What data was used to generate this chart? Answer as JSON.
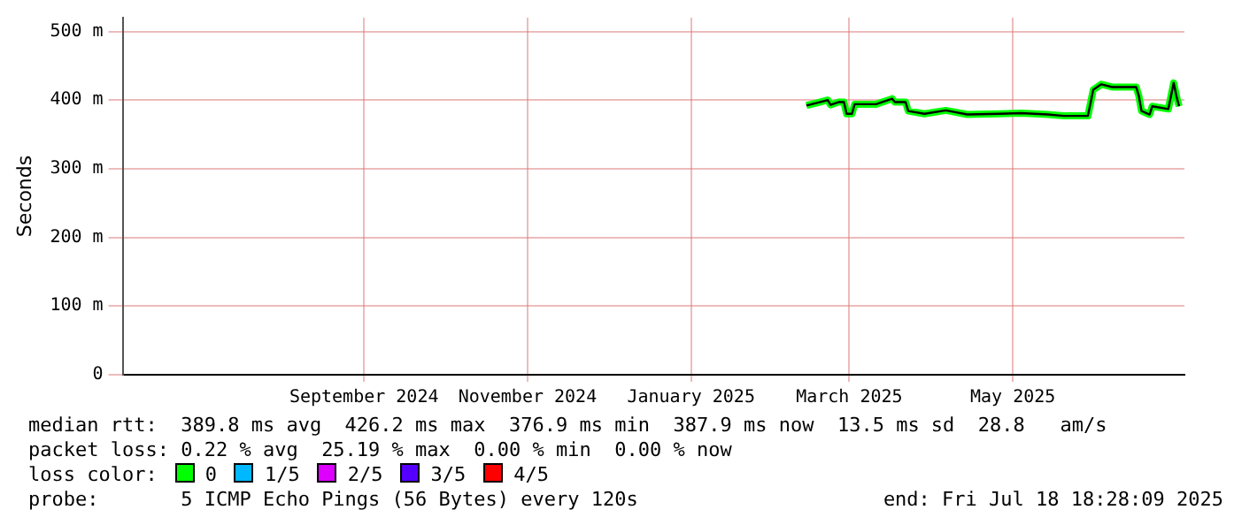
{
  "chart_data": {
    "type": "line",
    "ylabel": "Seconds",
    "x": [
      "2025-02-27",
      "2025-03-03",
      "2025-03-07",
      "2025-03-08",
      "2025-03-11",
      "2025-03-13",
      "2025-03-14",
      "2025-03-16",
      "2025-03-17",
      "2025-03-25",
      "2025-03-31",
      "2025-04-01",
      "2025-04-05",
      "2025-04-06",
      "2025-04-12",
      "2025-04-20",
      "2025-04-28",
      "2025-05-10",
      "2025-05-18",
      "2025-05-28",
      "2025-06-03",
      "2025-06-12",
      "2025-06-14",
      "2025-06-17",
      "2025-06-21",
      "2025-06-30",
      "2025-07-01",
      "2025-07-02",
      "2025-07-05",
      "2025-07-06",
      "2025-07-12",
      "2025-07-14",
      "2025-07-15",
      "2025-07-16"
    ],
    "series": [
      {
        "name": "0",
        "color": "#00ff00",
        "values": [
          392,
          396,
          400,
          393,
          397,
          397,
          380,
          380,
          394,
          394,
          402,
          397,
          397,
          384,
          380,
          385,
          379,
          380,
          381,
          379,
          377,
          377,
          415,
          423,
          419,
          419,
          406,
          384,
          379,
          391,
          387,
          425,
          406,
          391
        ]
      },
      {
        "color": "#000000",
        "values": [
          392,
          396,
          400,
          393,
          397,
          397,
          380,
          380,
          394,
          394,
          402,
          397,
          397,
          384,
          380,
          385,
          379,
          380,
          381,
          379,
          377,
          377,
          415,
          423,
          419,
          419,
          406,
          384,
          379,
          391,
          387,
          425,
          406,
          391
        ]
      },
      {
        "name": "1/5",
        "color": "#00b8ff",
        "values": [
          null,
          null,
          null,
          null,
          null,
          null,
          null,
          null,
          null,
          null,
          null,
          null,
          null,
          null,
          null,
          null,
          null,
          null,
          null,
          null,
          null,
          null,
          null,
          null,
          null,
          null,
          null,
          null,
          null,
          null,
          null,
          null,
          null,
          null
        ]
      },
      {
        "name": "2/5",
        "color": "#dd00ff",
        "values": [
          null,
          null,
          null,
          null,
          null,
          null,
          null,
          null,
          null,
          null,
          null,
          null,
          null,
          null,
          null,
          null,
          null,
          null,
          null,
          null,
          null,
          null,
          null,
          null,
          null,
          null,
          null,
          null,
          null,
          null,
          null,
          null,
          null,
          null
        ]
      },
      {
        "name": "3/5",
        "color": "#5500ff",
        "values": [
          null,
          null,
          null,
          null,
          null,
          null,
          null,
          null,
          null,
          null,
          null,
          null,
          null,
          null,
          null,
          null,
          null,
          null,
          null,
          null,
          null,
          null,
          null,
          null,
          null,
          null,
          null,
          null,
          null,
          null,
          null,
          null,
          null,
          null
        ]
      },
      {
        "name": "4/5",
        "color": "#ff0000",
        "values": [
          null,
          null,
          null,
          null,
          null,
          null,
          null,
          null,
          null,
          null,
          null,
          null,
          null,
          null,
          null,
          null,
          null,
          null,
          null,
          null,
          null,
          null,
          null,
          null,
          null,
          null,
          null,
          null,
          null,
          null,
          null,
          null,
          null,
          null
        ]
      }
    ],
    "xlim": [
      "2024-06-17",
      "2025-07-18"
    ],
    "xticks": [
      {
        "value": "2024-09-15",
        "label": "September 2024"
      },
      {
        "value": "2024-11-15",
        "label": "November 2024"
      },
      {
        "value": "2025-01-15",
        "label": "January 2025"
      },
      {
        "value": "2025-03-15",
        "label": "March 2025"
      },
      {
        "value": "2025-05-15",
        "label": "May 2025"
      }
    ],
    "ylim": [
      0,
      520
    ],
    "yticks": [
      0,
      {
        "value": 100,
        "label": "100 m"
      },
      {
        "value": 200,
        "label": "200 m"
      },
      {
        "value": 300,
        "label": "300 m"
      },
      {
        "value": 400,
        "label": "400 m"
      },
      {
        "value": 500,
        "label": "500 m"
      }
    ],
    "grid": true,
    "legend": "bottom",
    "legend_title": "loss color:",
    "marker": "none",
    "line_style": "solid",
    "annotations": [
      "median rtt:  389.8 ms avg  426.2 ms max  376.9 ms min  387.9 ms now  13.5 ms sd  28.8   am/s",
      "packet loss: 0.22 % avg  25.19 % max  0.00 % min  0.00 % now",
      "probe:       5 ICMP Echo Pings (56 Bytes) every 120s",
      "end: Fri Jul 18 18:28:09 2025"
    ]
  }
}
